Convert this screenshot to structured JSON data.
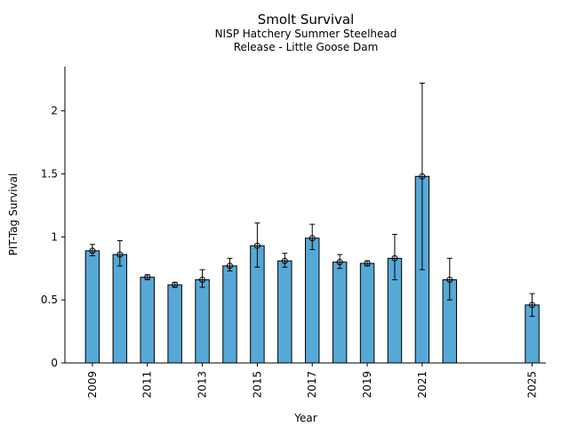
{
  "chart_data": {
    "type": "bar",
    "title": "Smolt Survival",
    "subtitle_lines": [
      "NISP Hatchery Summer Steelhead",
      "Release - Little Goose Dam"
    ],
    "xlabel": "Year",
    "ylabel": "PIT-Tag Survival",
    "xlim": [
      2008,
      2025.5
    ],
    "ylim": [
      0,
      2.35
    ],
    "x_ticks": [
      2009,
      2011,
      2013,
      2015,
      2017,
      2019,
      2021,
      2025
    ],
    "y_ticks": [
      0,
      0.5,
      1,
      1.5,
      2
    ],
    "y_tick_labels": [
      "0",
      "0.5",
      "1",
      "1.5",
      "2"
    ],
    "bar_color": "#56a8d6",
    "series": [
      {
        "name": "Survival",
        "x": [
          2009,
          2010,
          2011,
          2012,
          2013,
          2014,
          2015,
          2016,
          2017,
          2018,
          2019,
          2020,
          2021,
          2022,
          2025
        ],
        "values": [
          0.89,
          0.86,
          0.68,
          0.62,
          0.66,
          0.77,
          0.93,
          0.81,
          0.99,
          0.8,
          0.79,
          0.83,
          1.48,
          0.66,
          0.46
        ],
        "err_low": [
          0.85,
          0.77,
          0.66,
          0.6,
          0.6,
          0.73,
          0.76,
          0.76,
          0.9,
          0.75,
          0.77,
          0.66,
          0.74,
          0.5,
          0.37
        ],
        "err_high": [
          0.94,
          0.97,
          0.7,
          0.64,
          0.74,
          0.83,
          1.11,
          0.87,
          1.1,
          0.86,
          0.81,
          1.02,
          2.22,
          0.83,
          0.55
        ]
      }
    ]
  }
}
